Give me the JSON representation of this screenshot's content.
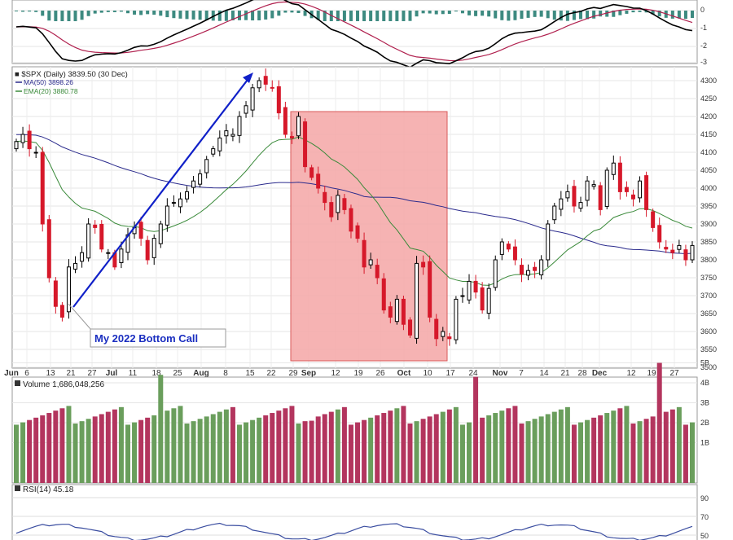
{
  "colors": {
    "up": "#000000",
    "down": "#d6182a",
    "ma50": "#2a2a8c",
    "ema20": "#3a8a3a",
    "macd_line": "#000000",
    "signal_line": "#b0204e",
    "hist": "#3d8a80",
    "vol_up": "#6a9e5c",
    "vol_down": "#b3355e",
    "highlight": "#f4a6a6",
    "arrow": "#1020c8",
    "callout_text": "#1a2ec0",
    "rsi_line": "#3a4da0"
  },
  "macd_panel": {
    "y_ticks": [
      "0",
      "-1",
      "-2",
      "-3"
    ]
  },
  "price_panel": {
    "legend": [
      "■ $SPX (Daily) 3839.50 (30 Dec)",
      "MA(50) 3898.26",
      "EMA(20) 3880.78"
    ],
    "y_ticks": [
      "4300",
      "4250",
      "4200",
      "4150",
      "4100",
      "4050",
      "4000",
      "3950",
      "3900",
      "3850",
      "3800",
      "3750",
      "3700",
      "3650",
      "3600",
      "3550",
      "3500"
    ],
    "x_ticks": [
      "Jun",
      "6",
      "13",
      "21",
      "27",
      "Jul",
      "11",
      "18",
      "25",
      "Aug",
      "8",
      "15",
      "22",
      "29",
      "Sep",
      "12",
      "19",
      "26",
      "Oct",
      "10",
      "17",
      "24",
      "Nov",
      "7",
      "14",
      "21",
      "28",
      "Dec",
      "12",
      "19",
      "27"
    ],
    "annotation": "My 2022 Bottom Call"
  },
  "volume_panel": {
    "label": "Volume 1,686,048,256",
    "y_ticks": [
      "5B",
      "4B",
      "3B",
      "2B",
      "1B"
    ]
  },
  "rsi_panel": {
    "label": "RSI(14) 45.18",
    "y_ticks": [
      "90",
      "70",
      "50"
    ]
  },
  "chart_data": {
    "type": "candlestick",
    "title": "$SPX (Daily) 3839.50 (30 Dec)",
    "ylim": [
      3490,
      4320
    ],
    "close": [
      4130,
      4150,
      4110,
      4100,
      3900,
      3750,
      3670,
      3640,
      3780,
      3790,
      3820,
      3900,
      3890,
      3830,
      3820,
      3780,
      3830,
      3870,
      3890,
      3860,
      3800,
      3860,
      3900,
      3950,
      3960,
      3970,
      3990,
      4020,
      4040,
      4080,
      4110,
      4140,
      4160,
      4150,
      4200,
      4230,
      4280,
      4300,
      4290,
      4280,
      4210,
      4150,
      4140,
      4200,
      4060,
      4030,
      4000,
      3960,
      3920,
      3980,
      3940,
      3880,
      3860,
      3780,
      3800,
      3750,
      3660,
      3640,
      3690,
      3620,
      3590,
      3790,
      3780,
      3640,
      3580,
      3600,
      3580,
      3690,
      3700,
      3740,
      3710,
      3660,
      3720,
      3800,
      3850,
      3830,
      3800,
      3760,
      3770,
      3770,
      3800,
      3900,
      3950,
      3970,
      3990,
      3950,
      3960,
      4020,
      4010,
      3940,
      4050,
      4070,
      3990,
      3990,
      3970,
      4020,
      3940,
      3890,
      3850,
      3830,
      3820,
      3840,
      3800,
      3840
    ]
  }
}
